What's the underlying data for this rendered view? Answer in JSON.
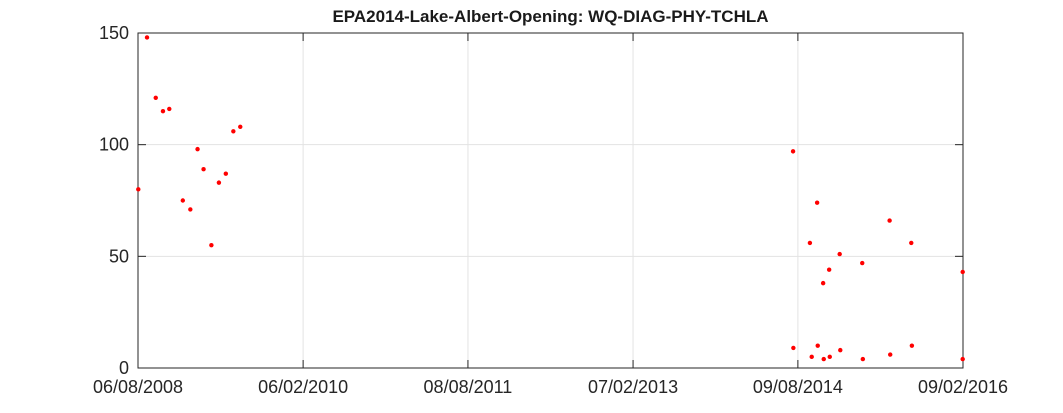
{
  "chart_data": {
    "type": "scatter",
    "title": "EPA2014-Lake-Albert-Opening: WQ-DIAG-PHY-TCHLA",
    "xlabel": "",
    "ylabel": "",
    "x_axis_type": "date",
    "xlim": [
      "2008-08-06",
      "2016-02-09"
    ],
    "ylim": [
      0,
      150
    ],
    "x_ticks": [
      "2008-08-06",
      "2010-02-06",
      "2011-08-08",
      "2013-02-07",
      "2014-08-09",
      "2016-02-09"
    ],
    "x_tick_labels": [
      "06/08/2008",
      "06/02/2010",
      "08/08/2011",
      "07/02/2013",
      "09/08/2014",
      "09/02/2016"
    ],
    "y_ticks": [
      0,
      50,
      100,
      150
    ],
    "y_tick_labels": [
      "0",
      "50",
      "100",
      "150"
    ],
    "grid": true,
    "marker_color": "#ff0000",
    "series": [
      {
        "points": [
          {
            "x": "2008-08-07",
            "y": 80
          },
          {
            "x": "2008-09-05",
            "y": 148
          },
          {
            "x": "2008-10-04",
            "y": 121
          },
          {
            "x": "2008-10-28",
            "y": 115
          },
          {
            "x": "2008-11-18",
            "y": 116
          },
          {
            "x": "2009-01-02",
            "y": 75
          },
          {
            "x": "2009-01-27",
            "y": 71
          },
          {
            "x": "2009-02-20",
            "y": 98
          },
          {
            "x": "2009-03-12",
            "y": 89
          },
          {
            "x": "2009-04-07",
            "y": 55
          },
          {
            "x": "2009-05-02",
            "y": 83
          },
          {
            "x": "2009-05-25",
            "y": 87
          },
          {
            "x": "2009-06-19",
            "y": 106
          },
          {
            "x": "2009-07-12",
            "y": 108
          },
          {
            "x": "2014-07-24",
            "y": 97
          },
          {
            "x": "2014-07-25",
            "y": 9
          },
          {
            "x": "2014-09-18",
            "y": 56
          },
          {
            "x": "2014-09-24",
            "y": 5
          },
          {
            "x": "2014-10-12",
            "y": 74
          },
          {
            "x": "2014-10-14",
            "y": 10
          },
          {
            "x": "2014-11-01",
            "y": 38
          },
          {
            "x": "2014-11-03",
            "y": 4
          },
          {
            "x": "2014-11-21",
            "y": 44
          },
          {
            "x": "2014-11-23",
            "y": 5
          },
          {
            "x": "2014-12-26",
            "y": 51
          },
          {
            "x": "2014-12-28",
            "y": 8
          },
          {
            "x": "2015-03-11",
            "y": 47
          },
          {
            "x": "2015-03-13",
            "y": 4
          },
          {
            "x": "2015-06-10",
            "y": 66
          },
          {
            "x": "2015-06-12",
            "y": 6
          },
          {
            "x": "2015-08-21",
            "y": 56
          },
          {
            "x": "2015-08-23",
            "y": 10
          },
          {
            "x": "2016-02-08",
            "y": 43
          },
          {
            "x": "2016-02-08",
            "y": 4
          }
        ]
      }
    ]
  }
}
